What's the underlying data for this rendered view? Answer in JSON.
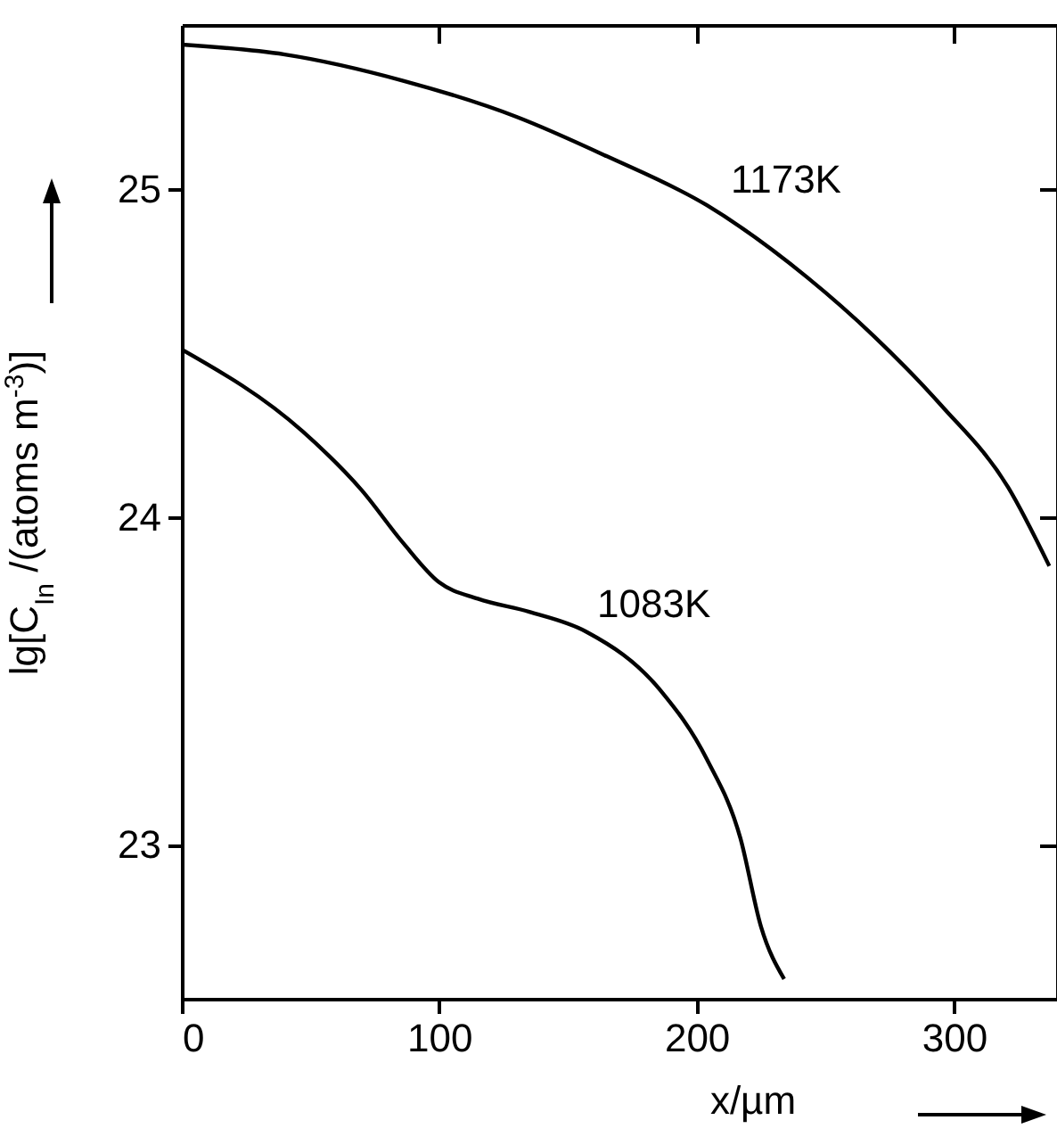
{
  "chart_data": {
    "type": "line",
    "xlabel": "x/µm",
    "ylabel": "lg[C$_{In}$ /(atoms m$^{-3}$)]",
    "xlim": [
      0,
      340
    ],
    "ylim": [
      22.53,
      25.5
    ],
    "xticks": [
      0,
      100,
      200,
      300
    ],
    "yticks": [
      23,
      24,
      25
    ],
    "grid": false,
    "series": [
      {
        "name": "1173K",
        "color": "#000000",
        "x": [
          0,
          40,
          86,
          130,
          165,
          204,
          243,
          269,
          295,
          321,
          337
        ],
        "values": [
          25.44,
          25.41,
          25.33,
          25.22,
          25.1,
          24.95,
          24.73,
          24.55,
          24.34,
          24.09,
          23.85
        ]
      },
      {
        "name": "1083K",
        "color": "#000000",
        "x": [
          0,
          47,
          70,
          86,
          100,
          115,
          135,
          157,
          186,
          204,
          217,
          225,
          234
        ],
        "values": [
          24.51,
          24.26,
          24.08,
          23.92,
          23.8,
          23.75,
          23.71,
          23.65,
          23.47,
          23.26,
          23.02,
          22.75,
          22.59
        ]
      }
    ]
  }
}
